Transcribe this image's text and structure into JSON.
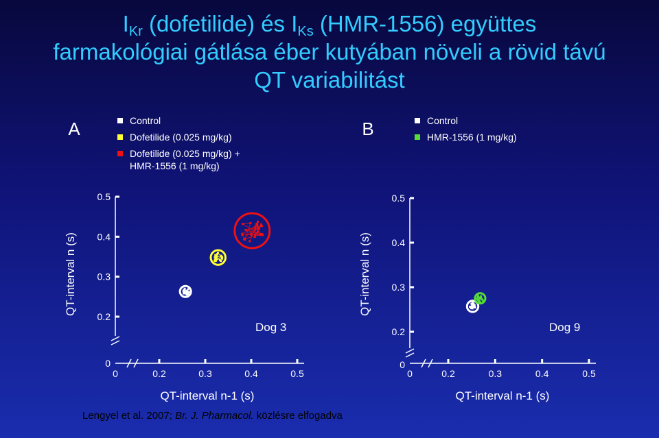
{
  "title": {
    "part1": "I",
    "sub1": "Kr",
    "part2": " (dofetilide) és I",
    "sub2": "Ks",
    "part3": " (HMR-1556) együttes",
    "line2": "farmakológiai gátlása éber kutyában növeli a rövid távú",
    "line3": "QT variabilitást"
  },
  "citation": {
    "prefix": "Lengyel et al. 2007; ",
    "journal": "Br. J. Pharmacol.",
    "suffix": " közlésre elfogadva"
  },
  "colors": {
    "control": "#ffffff",
    "dofetilide": "#ffff33",
    "combo": "#ee1111",
    "hmr": "#55dd33"
  },
  "chart_data": [
    {
      "type": "scatter",
      "panel_label": "A",
      "annotation": "Dog 3",
      "xlabel": "QT-interval n-1 (s)",
      "ylabel": "QT-interval n (s)",
      "x_ticks": [
        "0",
        "0.2",
        "0.3",
        "0.4",
        "0.5"
      ],
      "y_ticks": [
        "0",
        "0.2",
        "0.3",
        "0.4",
        "0.5"
      ],
      "x_range": [
        0.13,
        0.5
      ],
      "y_range": [
        0.13,
        0.5
      ],
      "axis_break": true,
      "legend": [
        {
          "label": "Control",
          "key": "control"
        },
        {
          "label": "Dofetilide  (0.025 mg/kg)",
          "key": "dofetilide"
        },
        {
          "label": "Dofetilide  (0.025 mg/kg) +",
          "label2": "HMR-1556 (1 mg/kg)",
          "key": "combo"
        }
      ],
      "series": [
        {
          "key": "control",
          "center": [
            0.257,
            0.263
          ],
          "radius": 0.012,
          "spread": 0.008,
          "n": 16,
          "circled": true
        },
        {
          "key": "dofetilide",
          "center": [
            0.328,
            0.348
          ],
          "radius": 0.016,
          "spread": 0.011,
          "n": 20,
          "circled": true
        },
        {
          "key": "combo",
          "center": [
            0.402,
            0.415
          ],
          "radius": 0.038,
          "spread": 0.026,
          "n": 26,
          "circled": true
        }
      ]
    },
    {
      "type": "scatter",
      "panel_label": "B",
      "annotation": "Dog 9",
      "xlabel": "QT-interval n-1 (s)",
      "ylabel": "QT-interval n (s)",
      "x_ticks": [
        "0",
        "0.2",
        "0.3",
        "0.4",
        "0.5"
      ],
      "y_ticks": [
        "0",
        "0.2",
        "0.3",
        "0.4",
        "0.5"
      ],
      "x_range": [
        0.13,
        0.5
      ],
      "y_range": [
        0.13,
        0.5
      ],
      "axis_break": true,
      "legend": [
        {
          "label": "Control",
          "key": "control"
        },
        {
          "label": "HMR-1556 (1 mg/kg)",
          "key": "hmr"
        }
      ],
      "series": [
        {
          "key": "control",
          "center": [
            0.252,
            0.257
          ],
          "radius": 0.012,
          "spread": 0.008,
          "n": 16,
          "circled": true
        },
        {
          "key": "hmr",
          "center": [
            0.268,
            0.275
          ],
          "radius": 0.011,
          "spread": 0.008,
          "n": 16,
          "circled": true
        }
      ]
    }
  ]
}
